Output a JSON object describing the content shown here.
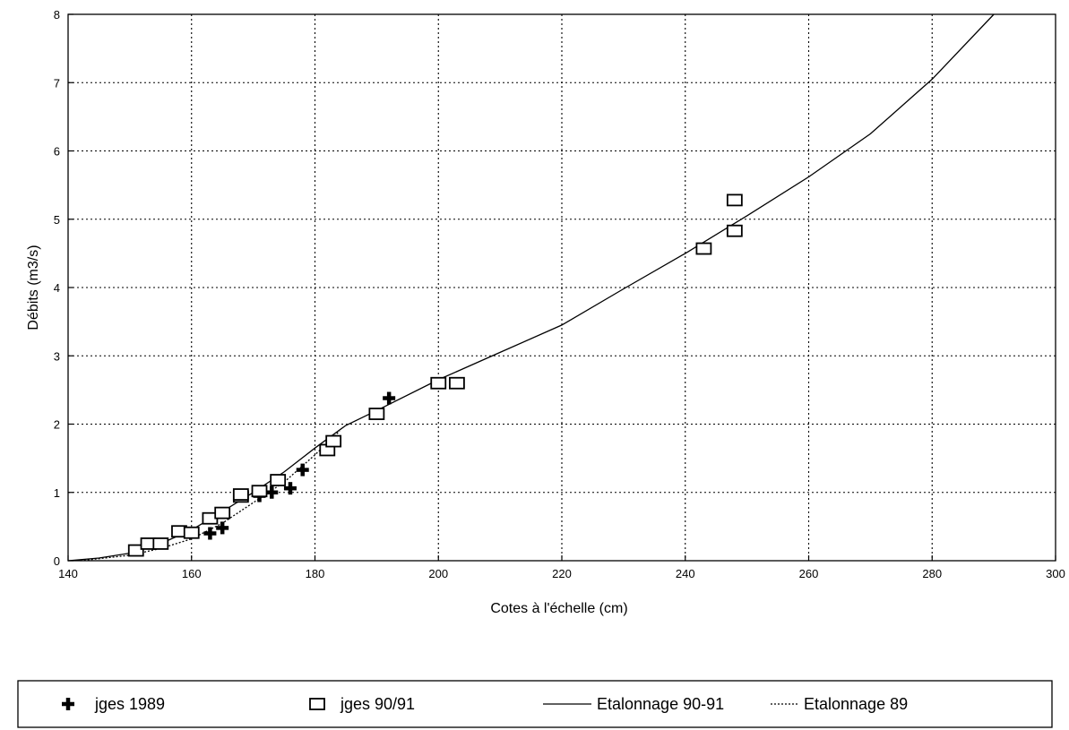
{
  "chart_data": {
    "type": "scatter",
    "title": "",
    "xlabel": "Cotes à l'échelle (cm)",
    "ylabel": "Débits (m3/s)",
    "xlim": [
      140,
      300
    ],
    "ylim": [
      0,
      8
    ],
    "x_ticks": [
      "140",
      "160",
      "180",
      "200",
      "220",
      "240",
      "260",
      "280",
      "300"
    ],
    "y_ticks": [
      "0",
      "1",
      "2",
      "3",
      "4",
      "5",
      "6",
      "7",
      "8"
    ],
    "grid": true,
    "legend_position": "bottom",
    "series": [
      {
        "name": "jges 1989",
        "kind": "scatter",
        "marker": "plus",
        "points": [
          [
            163,
            0.4
          ],
          [
            165,
            0.48
          ],
          [
            171,
            0.95
          ],
          [
            173,
            1.0
          ],
          [
            176,
            1.06
          ],
          [
            178,
            1.33
          ],
          [
            192,
            2.38
          ]
        ]
      },
      {
        "name": "jges 90/91",
        "kind": "scatter",
        "marker": "square",
        "points": [
          [
            151,
            0.15
          ],
          [
            153,
            0.25
          ],
          [
            155,
            0.25
          ],
          [
            158,
            0.43
          ],
          [
            160,
            0.41
          ],
          [
            163,
            0.62
          ],
          [
            165,
            0.7
          ],
          [
            168,
            0.94
          ],
          [
            168,
            0.97
          ],
          [
            171,
            1.02
          ],
          [
            174,
            1.18
          ],
          [
            182,
            1.62
          ],
          [
            183,
            1.75
          ],
          [
            190,
            2.15
          ],
          [
            200,
            2.6
          ],
          [
            203,
            2.6
          ],
          [
            243,
            4.57
          ],
          [
            248,
            4.83
          ],
          [
            248,
            5.28
          ]
        ]
      },
      {
        "name": "Etalonnage 90-91",
        "kind": "line",
        "style": "solid",
        "points": [
          [
            140,
            0.0
          ],
          [
            145,
            0.04
          ],
          [
            150,
            0.11
          ],
          [
            155,
            0.25
          ],
          [
            160,
            0.45
          ],
          [
            165,
            0.72
          ],
          [
            170,
            1.0
          ],
          [
            175,
            1.3
          ],
          [
            180,
            1.65
          ],
          [
            185,
            1.98
          ],
          [
            190,
            2.2
          ],
          [
            200,
            2.65
          ],
          [
            210,
            3.05
          ],
          [
            220,
            3.45
          ],
          [
            230,
            3.98
          ],
          [
            240,
            4.5
          ],
          [
            250,
            5.05
          ],
          [
            260,
            5.62
          ],
          [
            270,
            6.25
          ],
          [
            280,
            7.05
          ],
          [
            290,
            8.0
          ]
        ]
      },
      {
        "name": "Etalonnage 89",
        "kind": "line",
        "style": "dotted",
        "points": [
          [
            142,
            0.0
          ],
          [
            150,
            0.08
          ],
          [
            155,
            0.18
          ],
          [
            160,
            0.32
          ],
          [
            165,
            0.55
          ],
          [
            170,
            0.85
          ],
          [
            175,
            1.15
          ],
          [
            180,
            1.55
          ],
          [
            184,
            1.9
          ]
        ]
      }
    ]
  }
}
